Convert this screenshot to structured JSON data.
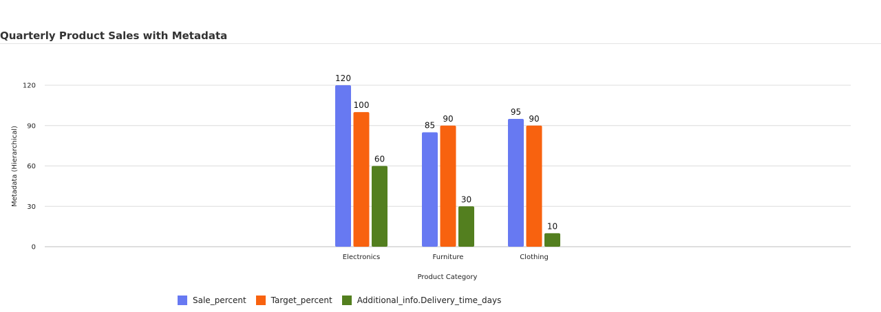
{
  "chart_data": {
    "type": "bar",
    "title": "Quarterly Product Sales with Metadata",
    "xlabel": "Product Category",
    "ylabel": "Metadata (Hierarchical)",
    "categories": [
      "Electronics",
      "Furniture",
      "Clothing"
    ],
    "series": [
      {
        "name": "Sale_percent",
        "values": [
          120,
          85,
          95
        ],
        "color": "#6779f2"
      },
      {
        "name": "Target_percent",
        "values": [
          100,
          90,
          90
        ],
        "color": "#f8620f"
      },
      {
        "name": "Additional_info.Delivery_time_days",
        "values": [
          60,
          30,
          10
        ],
        "color": "#537f1f"
      }
    ],
    "ylim": [
      0,
      120
    ],
    "yticks": [
      "0",
      "30",
      "60",
      "90",
      "120"
    ],
    "grid": true,
    "legend_position": "bottom"
  }
}
